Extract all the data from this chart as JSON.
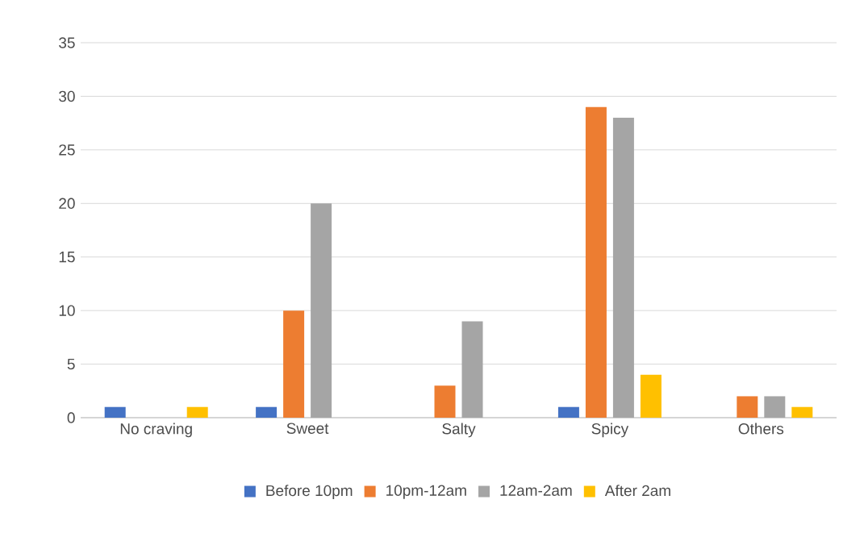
{
  "chart_data": {
    "type": "bar",
    "categories": [
      "No craving",
      "Sweet",
      "Salty",
      "Spicy",
      "Others"
    ],
    "series": [
      {
        "name": "Before 10pm",
        "color": "#4472c4",
        "values": [
          1,
          1,
          0,
          1,
          0
        ]
      },
      {
        "name": "10pm-12am",
        "color": "#ed7d31",
        "values": [
          0,
          10,
          3,
          29,
          2
        ]
      },
      {
        "name": "12am-2am",
        "color": "#a5a5a5",
        "values": [
          0,
          20,
          9,
          28,
          2
        ]
      },
      {
        "name": "After 2am",
        "color": "#ffc000",
        "values": [
          1,
          0,
          0,
          4,
          1
        ]
      }
    ],
    "ylim": [
      0,
      35
    ],
    "yticks": [
      0,
      5,
      10,
      15,
      20,
      25,
      30,
      35
    ],
    "grid": "y",
    "legend": "bottom"
  }
}
